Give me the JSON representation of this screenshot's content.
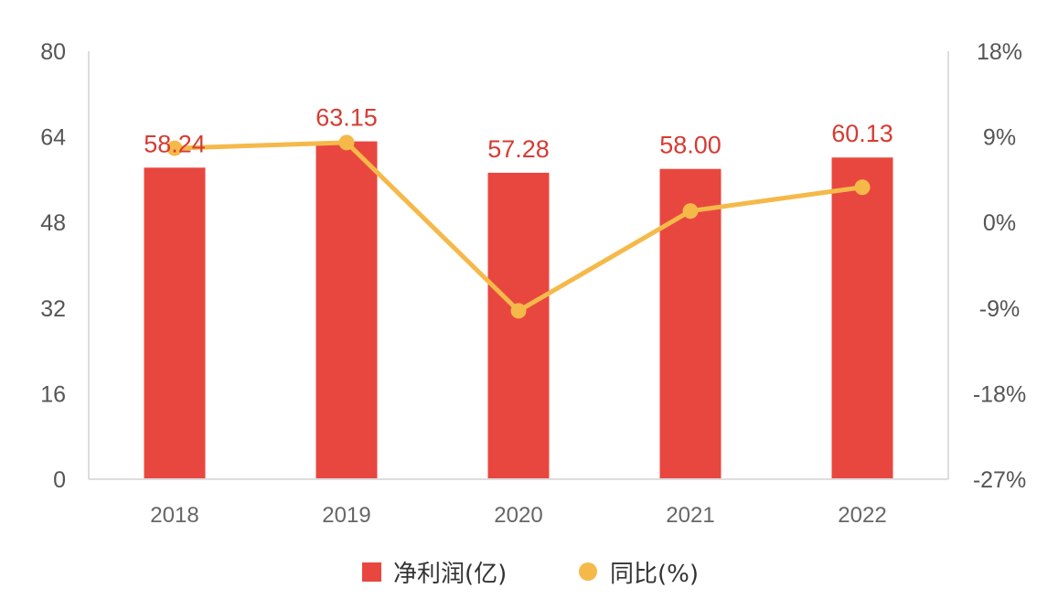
{
  "chart_data": {
    "type": "bar",
    "categories": [
      "2018",
      "2019",
      "2020",
      "2021",
      "2022"
    ],
    "series": [
      {
        "name": "净利润(亿)",
        "type": "bar",
        "axis": "left",
        "values": [
          58.24,
          63.15,
          57.28,
          58.0,
          60.13
        ],
        "labels": [
          "58.24",
          "63.15",
          "57.28",
          "58.00",
          "60.13"
        ],
        "color": "#e8473f"
      },
      {
        "name": "同比(%)",
        "type": "line",
        "axis": "right",
        "values": [
          7.8,
          8.4,
          -9.3,
          1.2,
          3.7
        ],
        "color": "#f5b94a"
      }
    ],
    "left_axis": {
      "ylim": [
        0,
        80
      ],
      "ticks": [
        "0",
        "16",
        "32",
        "48",
        "64",
        "80"
      ]
    },
    "right_axis": {
      "ylim": [
        -27,
        18
      ],
      "ticks": [
        "-27%",
        "-18%",
        "-9%",
        "0%",
        "9%",
        "18%"
      ]
    },
    "legend_position": "bottom-center",
    "label_color": "#d63b33",
    "axis_color": "#dddddd"
  }
}
